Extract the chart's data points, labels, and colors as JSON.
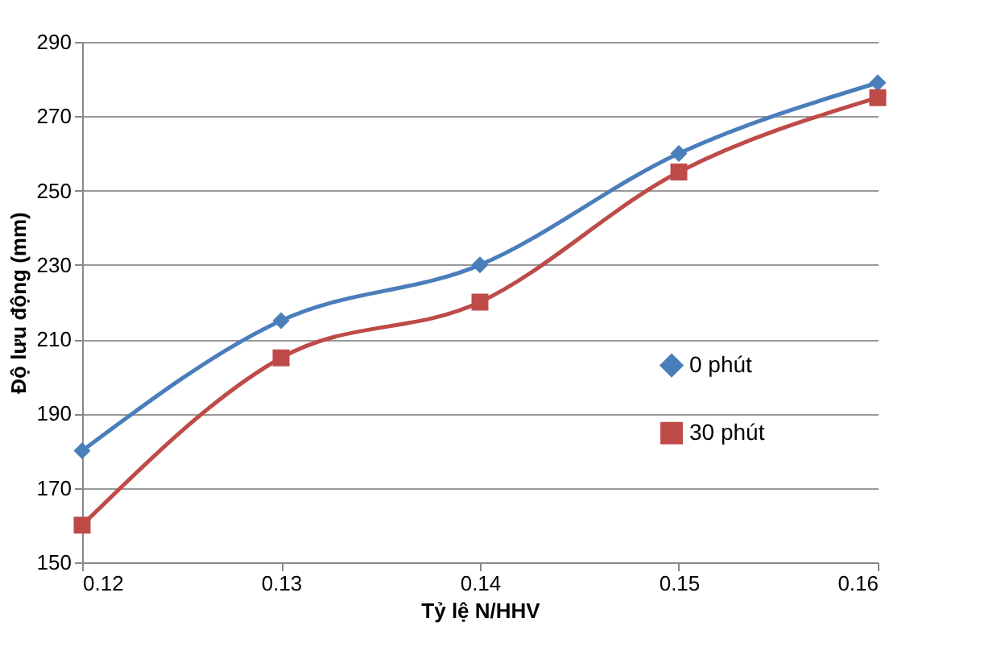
{
  "chart_data": {
    "type": "line",
    "xlabel": "Tỷ lệ N/HHV",
    "ylabel": "Độ lưu động (mm)",
    "x": [
      0.12,
      0.13,
      0.14,
      0.15,
      0.16
    ],
    "series": [
      {
        "name": "0 phút",
        "color": "#4a7ebb",
        "marker": "diamond",
        "values": [
          180,
          215,
          230,
          260,
          279
        ]
      },
      {
        "name": "30 phút",
        "color": "#be4b48",
        "marker": "square",
        "values": [
          160,
          205,
          220,
          255,
          275
        ]
      }
    ],
    "xlim": [
      0.12,
      0.16
    ],
    "xticks": [
      0.12,
      0.13,
      0.14,
      0.15,
      0.16
    ],
    "ylim": [
      150,
      290
    ],
    "yticks": [
      150,
      170,
      190,
      210,
      230,
      250,
      270,
      290
    ],
    "grid": "y",
    "legend": "right",
    "line_style": "solid"
  }
}
